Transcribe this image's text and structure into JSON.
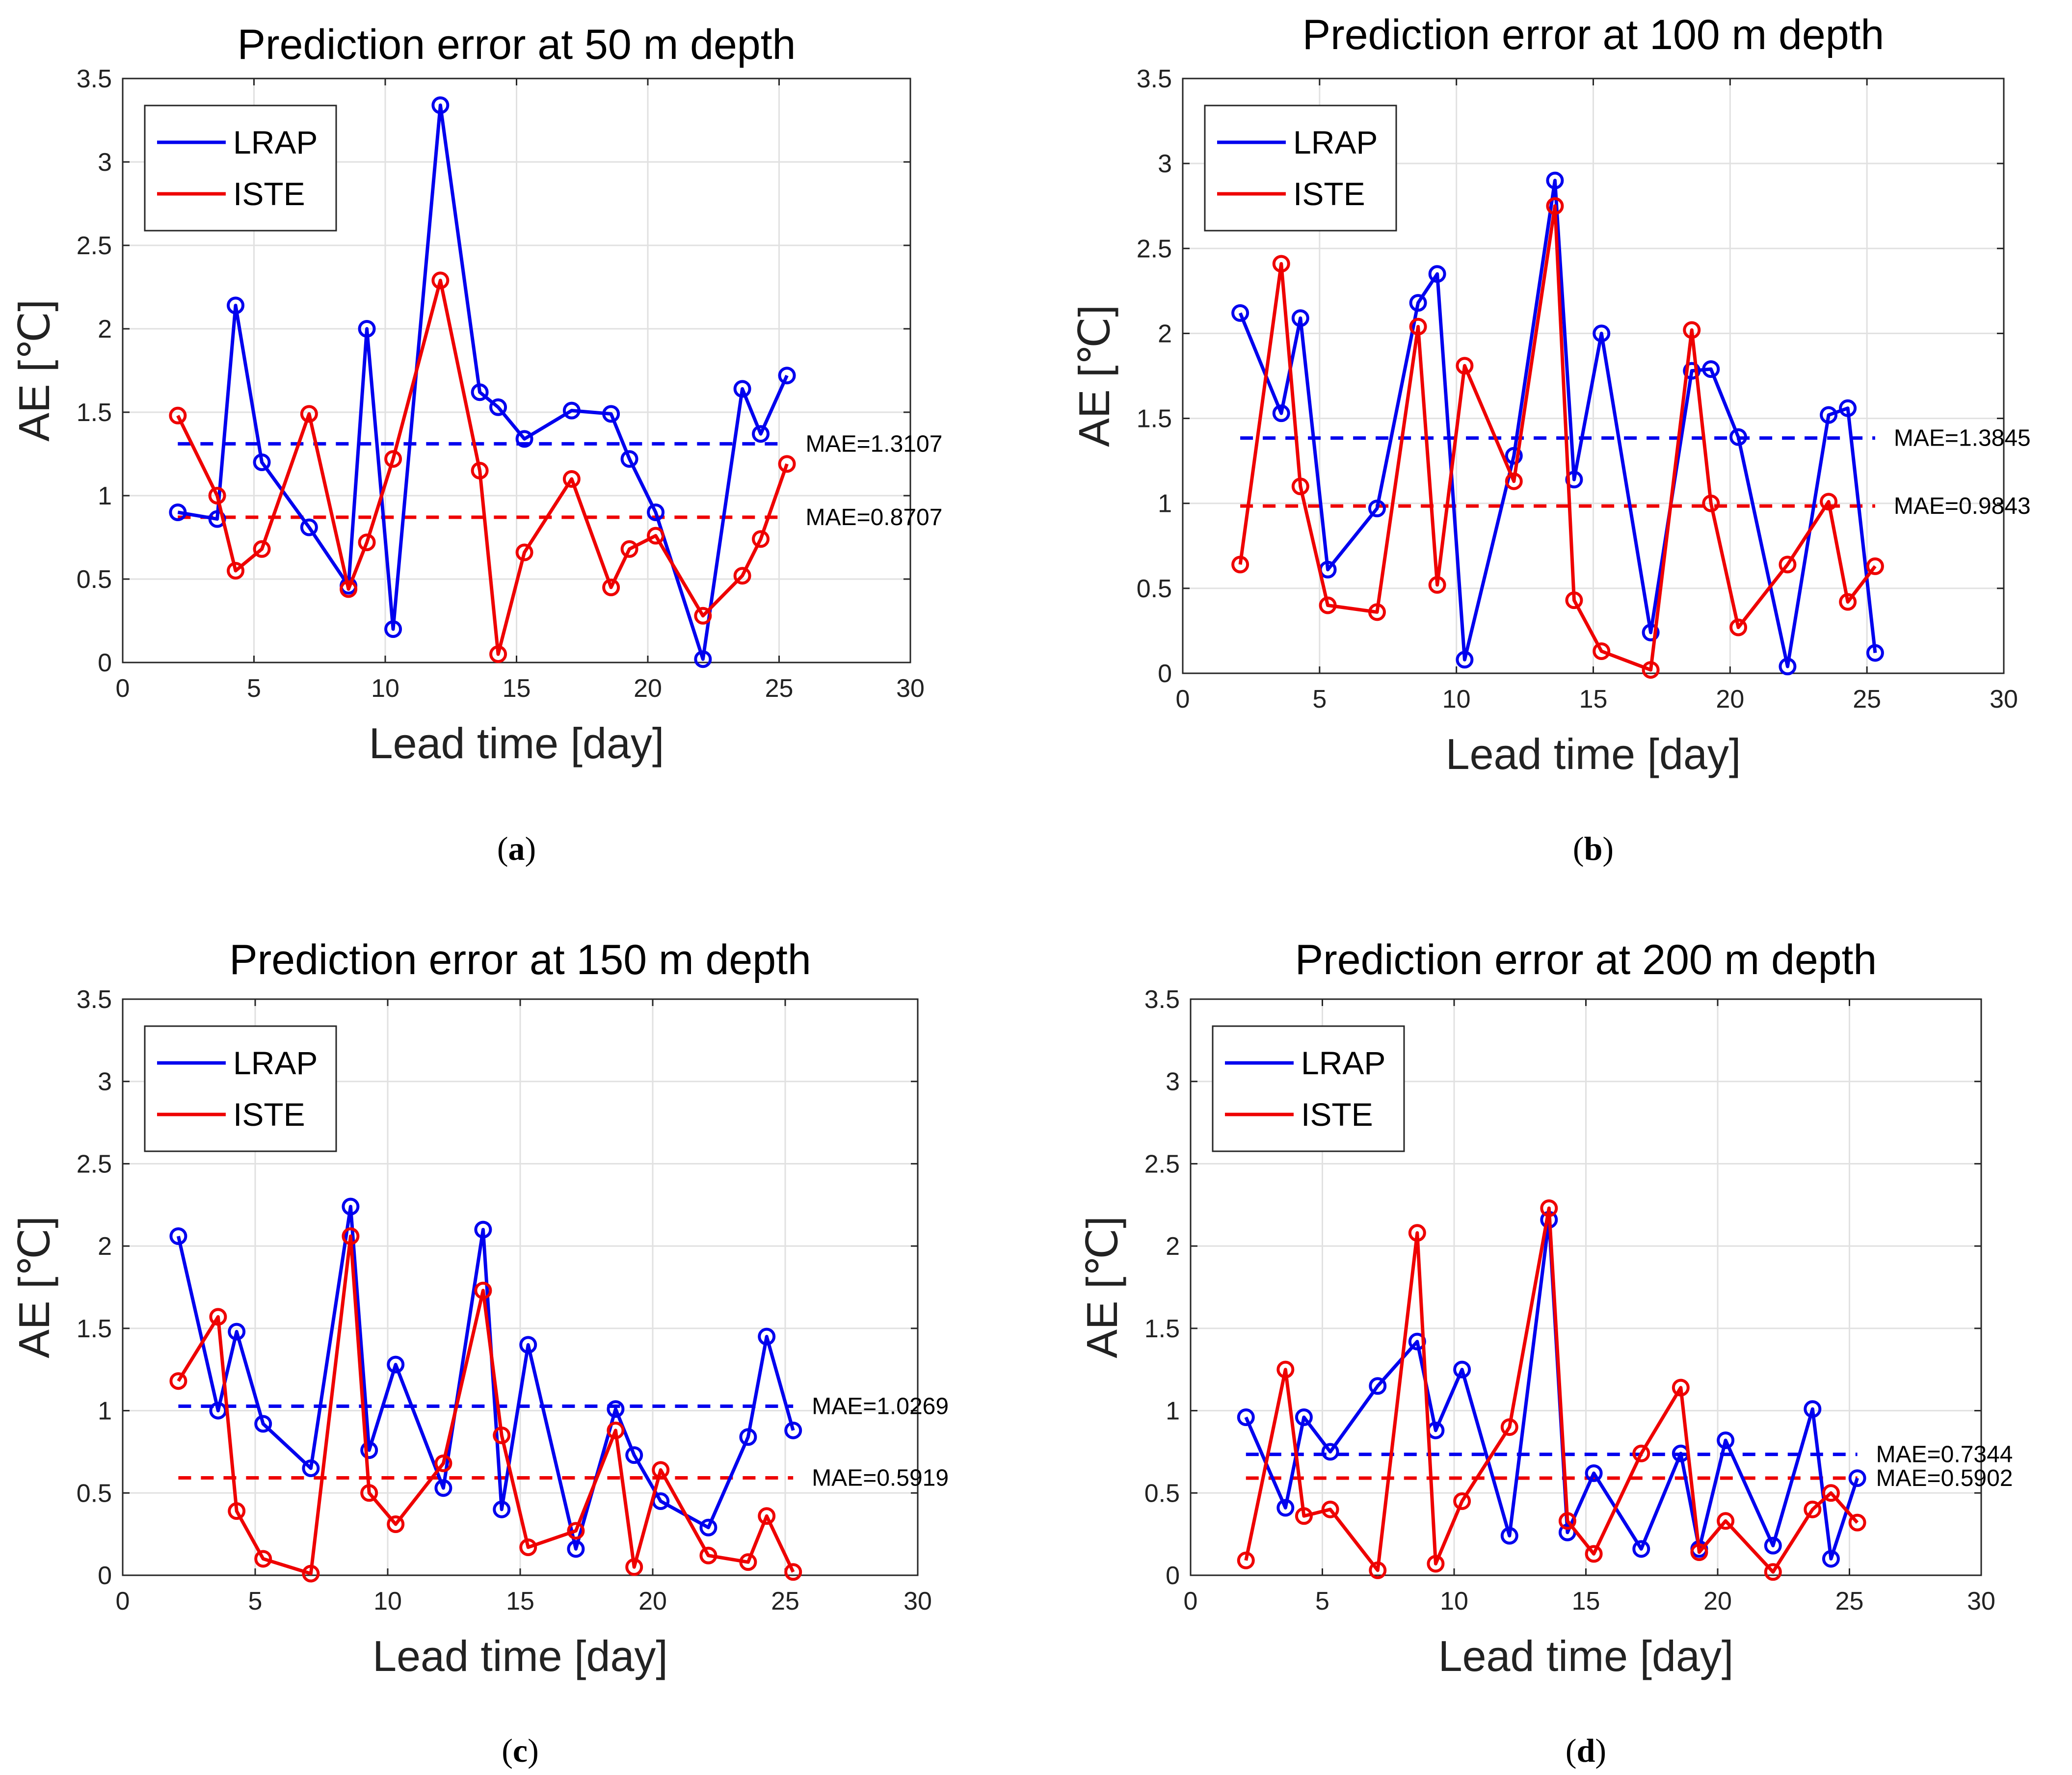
{
  "chart_data": [
    {
      "type": "line",
      "title": "Prediction error at 50 m depth",
      "xlabel": "Lead time [day]",
      "ylabel": "AE [℃]",
      "xlim": [
        0,
        30
      ],
      "ylim": [
        0,
        3.5
      ],
      "xticks": [
        0,
        5,
        10,
        15,
        20,
        25,
        30
      ],
      "yticks": [
        0,
        0.5,
        1,
        1.5,
        2,
        2.5,
        3,
        3.5
      ],
      "grid": true,
      "legend_position": "top-left",
      "caption_letter": "a",
      "series": [
        {
          "name": "LRAP",
          "color": "#0000ee",
          "x": [
            2.1,
            3.6,
            4.3,
            5.3,
            7.1,
            8.6,
            9.3,
            10.3,
            12.1,
            13.6,
            14.3,
            15.3,
            17.1,
            18.6,
            19.3,
            20.3,
            22.1,
            23.6,
            24.3,
            25.3
          ],
          "values": [
            0.9,
            0.86,
            2.14,
            1.2,
            0.81,
            0.46,
            2.0,
            0.2,
            3.34,
            1.62,
            1.53,
            1.34,
            1.51,
            1.49,
            1.22,
            0.9,
            0.02,
            1.64,
            1.37,
            1.72
          ]
        },
        {
          "name": "ISTE",
          "color": "#ee0000",
          "x": [
            2.1,
            3.6,
            4.3,
            5.3,
            7.1,
            8.6,
            9.3,
            10.3,
            12.1,
            13.6,
            14.3,
            15.3,
            17.1,
            18.6,
            19.3,
            20.3,
            22.1,
            23.6,
            24.3,
            25.3
          ],
          "values": [
            1.48,
            1.0,
            0.55,
            0.68,
            1.49,
            0.44,
            0.72,
            1.22,
            2.29,
            1.15,
            0.05,
            0.66,
            1.1,
            0.45,
            0.68,
            0.76,
            0.28,
            0.52,
            0.74,
            1.19
          ]
        }
      ],
      "mae_lines": [
        {
          "label": "MAE=1.3107",
          "value": 1.3107,
          "color": "#0000ee",
          "x_start": 2.1,
          "x_end": 25.3
        },
        {
          "label": "MAE=0.8707",
          "value": 0.8707,
          "color": "#ee0000",
          "x_start": 2.1,
          "x_end": 25.3
        }
      ]
    },
    {
      "type": "line",
      "title": "Prediction error at 100 m depth",
      "xlabel": "Lead time [day]",
      "ylabel": "AE [℃]",
      "xlim": [
        0,
        30
      ],
      "ylim": [
        0,
        3.5
      ],
      "xticks": [
        0,
        5,
        10,
        15,
        20,
        25,
        30
      ],
      "yticks": [
        0,
        0.5,
        1,
        1.5,
        2,
        2.5,
        3,
        3.5
      ],
      "grid": true,
      "legend_position": "top-left",
      "caption_letter": "b",
      "series": [
        {
          "name": "LRAP",
          "color": "#0000ee",
          "x": [
            2.1,
            3.6,
            4.3,
            5.3,
            7.1,
            8.6,
            9.3,
            10.3,
            12.1,
            13.6,
            14.3,
            15.3,
            17.1,
            18.6,
            19.3,
            20.3,
            22.1,
            23.6,
            24.3,
            25.3
          ],
          "values": [
            2.12,
            1.53,
            2.09,
            0.61,
            0.97,
            2.18,
            2.35,
            0.08,
            1.28,
            2.9,
            1.14,
            2.0,
            0.24,
            1.78,
            1.79,
            1.39,
            0.04,
            1.52,
            1.56,
            0.12
          ]
        },
        {
          "name": "ISTE",
          "color": "#ee0000",
          "x": [
            2.1,
            3.6,
            4.3,
            5.3,
            7.1,
            8.6,
            9.3,
            10.3,
            12.1,
            13.6,
            14.3,
            15.3,
            17.1,
            18.6,
            19.3,
            20.3,
            22.1,
            23.6,
            24.3,
            25.3
          ],
          "values": [
            0.64,
            2.41,
            1.1,
            0.4,
            0.36,
            2.04,
            0.52,
            1.81,
            1.13,
            2.75,
            0.43,
            0.13,
            0.02,
            2.02,
            1.0,
            0.27,
            0.64,
            1.01,
            0.42,
            0.63
          ]
        }
      ],
      "mae_lines": [
        {
          "label": "MAE=1.3845",
          "value": 1.3845,
          "color": "#0000ee",
          "x_start": 2.1,
          "x_end": 25.3
        },
        {
          "label": "MAE=0.9843",
          "value": 0.9843,
          "color": "#ee0000",
          "x_start": 2.1,
          "x_end": 25.3
        }
      ]
    },
    {
      "type": "line",
      "title": "Prediction error at 150 m depth",
      "xlabel": "Lead time [day]",
      "ylabel": "AE [℃]",
      "xlim": [
        0,
        30
      ],
      "ylim": [
        0,
        3.5
      ],
      "xticks": [
        0,
        5,
        10,
        15,
        20,
        25,
        30
      ],
      "yticks": [
        0,
        0.5,
        1,
        1.5,
        2,
        2.5,
        3,
        3.5
      ],
      "grid": true,
      "legend_position": "top-left",
      "caption_letter": "c",
      "series": [
        {
          "name": "LRAP",
          "color": "#0000ee",
          "x": [
            2.1,
            3.6,
            4.3,
            5.3,
            7.1,
            8.6,
            9.3,
            10.3,
            12.1,
            13.6,
            14.3,
            15.3,
            17.1,
            18.6,
            19.3,
            20.3,
            22.1,
            23.6,
            24.3,
            25.3
          ],
          "values": [
            2.06,
            1.0,
            1.48,
            0.92,
            0.65,
            2.24,
            0.76,
            1.28,
            0.53,
            2.1,
            0.4,
            1.4,
            0.16,
            1.01,
            0.73,
            0.45,
            0.29,
            0.84,
            1.45,
            0.88
          ]
        },
        {
          "name": "ISTE",
          "color": "#ee0000",
          "x": [
            2.1,
            3.6,
            4.3,
            5.3,
            7.1,
            8.6,
            9.3,
            10.3,
            12.1,
            13.6,
            14.3,
            15.3,
            17.1,
            18.6,
            19.3,
            20.3,
            22.1,
            23.6,
            24.3,
            25.3
          ],
          "values": [
            1.18,
            1.57,
            0.39,
            0.1,
            0.01,
            2.06,
            0.5,
            0.31,
            0.68,
            1.73,
            0.85,
            0.17,
            0.27,
            0.88,
            0.05,
            0.64,
            0.12,
            0.08,
            0.36,
            0.02
          ]
        }
      ],
      "mae_lines": [
        {
          "label": "MAE=1.0269",
          "value": 1.0269,
          "color": "#0000ee",
          "x_start": 2.1,
          "x_end": 25.3
        },
        {
          "label": "MAE=0.5919",
          "value": 0.5919,
          "color": "#ee0000",
          "x_start": 2.1,
          "x_end": 25.3
        }
      ]
    },
    {
      "type": "line",
      "title": "Prediction error at 200 m depth",
      "xlabel": "Lead time [day]",
      "ylabel": "AE [℃]",
      "xlim": [
        0,
        30
      ],
      "ylim": [
        0,
        3.5
      ],
      "xticks": [
        0,
        5,
        10,
        15,
        20,
        25,
        30
      ],
      "yticks": [
        0,
        0.5,
        1,
        1.5,
        2,
        2.5,
        3,
        3.5
      ],
      "grid": true,
      "legend_position": "top-left",
      "caption_letter": "d",
      "series": [
        {
          "name": "LRAP",
          "color": "#0000ee",
          "x": [
            2.1,
            3.6,
            4.3,
            5.3,
            7.1,
            8.6,
            9.3,
            10.3,
            12.1,
            13.6,
            14.3,
            15.3,
            17.1,
            18.6,
            19.3,
            20.3,
            22.1,
            23.6,
            24.3,
            25.3
          ],
          "values": [
            0.96,
            0.41,
            0.96,
            0.75,
            1.15,
            1.42,
            0.88,
            1.25,
            0.24,
            2.16,
            0.26,
            0.62,
            0.16,
            0.74,
            0.16,
            0.82,
            0.18,
            1.01,
            0.1,
            0.59
          ]
        },
        {
          "name": "ISTE",
          "color": "#ee0000",
          "x": [
            2.1,
            3.6,
            4.3,
            5.3,
            7.1,
            8.6,
            9.3,
            10.3,
            12.1,
            13.6,
            14.3,
            15.3,
            17.1,
            18.6,
            19.3,
            20.3,
            22.1,
            23.6,
            24.3,
            25.3
          ],
          "values": [
            0.09,
            1.25,
            0.36,
            0.4,
            0.03,
            2.08,
            0.07,
            0.45,
            0.9,
            2.23,
            0.33,
            0.13,
            0.74,
            1.14,
            0.14,
            0.33,
            0.02,
            0.4,
            0.5,
            0.32
          ]
        }
      ],
      "mae_lines": [
        {
          "label": "MAE=0.7344",
          "value": 0.7344,
          "color": "#0000ee",
          "x_start": 2.1,
          "x_end": 25.3
        },
        {
          "label": "MAE=0.5902",
          "value": 0.5902,
          "color": "#ee0000",
          "x_start": 2.1,
          "x_end": 25.3
        }
      ]
    }
  ]
}
